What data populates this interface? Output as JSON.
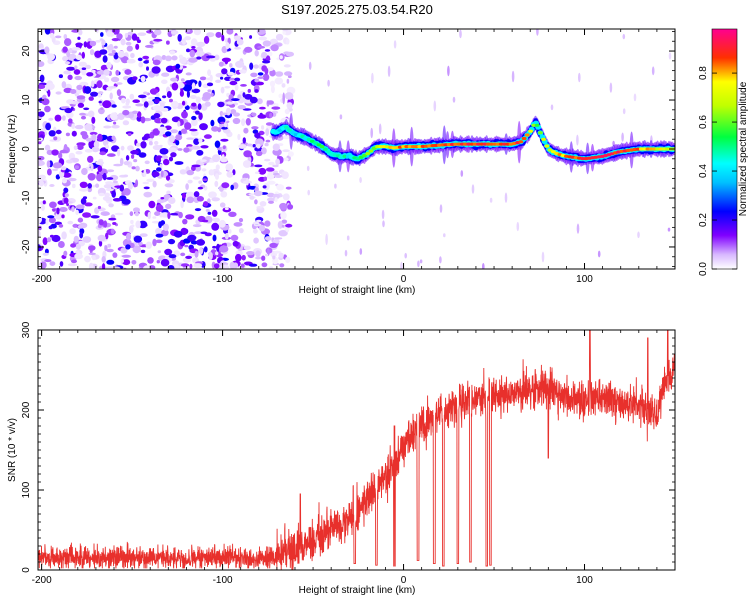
{
  "title": "S197.2025.275.03.54.R20",
  "chart_data": [
    {
      "type": "heatmap",
      "name": "spectrogram",
      "xlabel": "Height of straight line (km)",
      "ylabel": "Frequency (Hz)",
      "xlim": [
        -202,
        150
      ],
      "ylim": [
        -24.5,
        24.5
      ],
      "xticks": [
        -200,
        -100,
        0,
        100
      ],
      "yticks": [
        -20,
        -10,
        0,
        10,
        20
      ],
      "colorbar": {
        "label": "Normalized spectral amplitude",
        "ticks": [
          "0.0",
          "0.2",
          "0.4",
          "0.6",
          "0.8"
        ],
        "tick_values": [
          0.0,
          0.2,
          0.4,
          0.6,
          0.8
        ],
        "range": [
          0,
          0.98
        ],
        "colors": [
          "#ffffff",
          "#8000ff",
          "#0000ff",
          "#00ffff",
          "#00ff00",
          "#ffff00",
          "#ff0000",
          "#ff00a0"
        ]
      },
      "noise_region_x": [
        -202,
        -68
      ],
      "ridge": {
        "x": [
          -70,
          -65,
          -60,
          -55,
          -50,
          -45,
          -40,
          -35,
          -30,
          -25,
          -20,
          -15,
          -10,
          -5,
          0,
          10,
          20,
          30,
          40,
          50,
          60,
          65,
          70,
          73,
          76,
          80,
          85,
          90,
          100,
          110,
          120,
          130,
          140,
          150
        ],
        "freq": [
          3.5,
          4.5,
          3.0,
          2.5,
          1.5,
          0.5,
          -1.0,
          -1.5,
          -1.5,
          -2.0,
          -1.0,
          0.5,
          0.5,
          0.2,
          0.5,
          0.5,
          0.8,
          1.0,
          1.0,
          1.0,
          1.0,
          1.5,
          3.5,
          5.5,
          3.0,
          0.0,
          -1.0,
          -1.5,
          -2.0,
          -1.5,
          -0.5,
          0.0,
          0.0,
          0.0
        ],
        "amplitude": [
          0.4,
          0.45,
          0.4,
          0.45,
          0.5,
          0.55,
          0.45,
          0.5,
          0.45,
          0.5,
          0.6,
          0.65,
          0.75,
          0.8,
          0.85,
          0.85,
          0.85,
          0.9,
          0.9,
          0.9,
          0.9,
          0.85,
          0.8,
          0.6,
          0.7,
          0.7,
          0.8,
          0.85,
          0.9,
          0.9,
          0.9,
          0.85,
          0.75,
          0.7
        ]
      }
    },
    {
      "type": "line",
      "name": "snr",
      "xlabel": "Height of straight line (km)",
      "ylabel": "SNR (10 * v/v)",
      "xlim": [
        -202,
        150
      ],
      "ylim": [
        0,
        300
      ],
      "xticks": [
        -200,
        -100,
        0,
        100
      ],
      "yticks": [
        0,
        100,
        200,
        300
      ],
      "color": "#e8302c",
      "trend": {
        "x": [
          -202,
          -70,
          -60,
          -50,
          -40,
          -30,
          -20,
          -10,
          0,
          10,
          20,
          30,
          40,
          50,
          60,
          70,
          80,
          90,
          100,
          110,
          120,
          130,
          140,
          145,
          150
        ],
        "y": [
          15,
          15,
          30,
          40,
          50,
          65,
          90,
          115,
          155,
          180,
          195,
          210,
          215,
          220,
          220,
          225,
          228,
          215,
          215,
          215,
          210,
          205,
          195,
          240,
          250
        ]
      },
      "noise_amplitude": 12,
      "dips": [
        {
          "x": -27,
          "y": 8
        },
        {
          "x": -15,
          "y": 6
        },
        {
          "x": -5,
          "y": 5
        },
        {
          "x": 8,
          "y": 12
        },
        {
          "x": 17,
          "y": 8
        },
        {
          "x": 22,
          "y": 5
        },
        {
          "x": 30,
          "y": 8
        },
        {
          "x": 37,
          "y": 10
        },
        {
          "x": 46,
          "y": 5
        },
        {
          "x": 48,
          "y": 6
        }
      ],
      "spikes": [
        {
          "x": -57,
          "y": 95
        },
        {
          "x": -5,
          "y": 180
        },
        {
          "x": 80,
          "y": 140
        },
        {
          "x": 103,
          "y": 300
        },
        {
          "x": 146,
          "y": 300
        },
        {
          "x": 135,
          "y": 290
        }
      ]
    }
  ]
}
